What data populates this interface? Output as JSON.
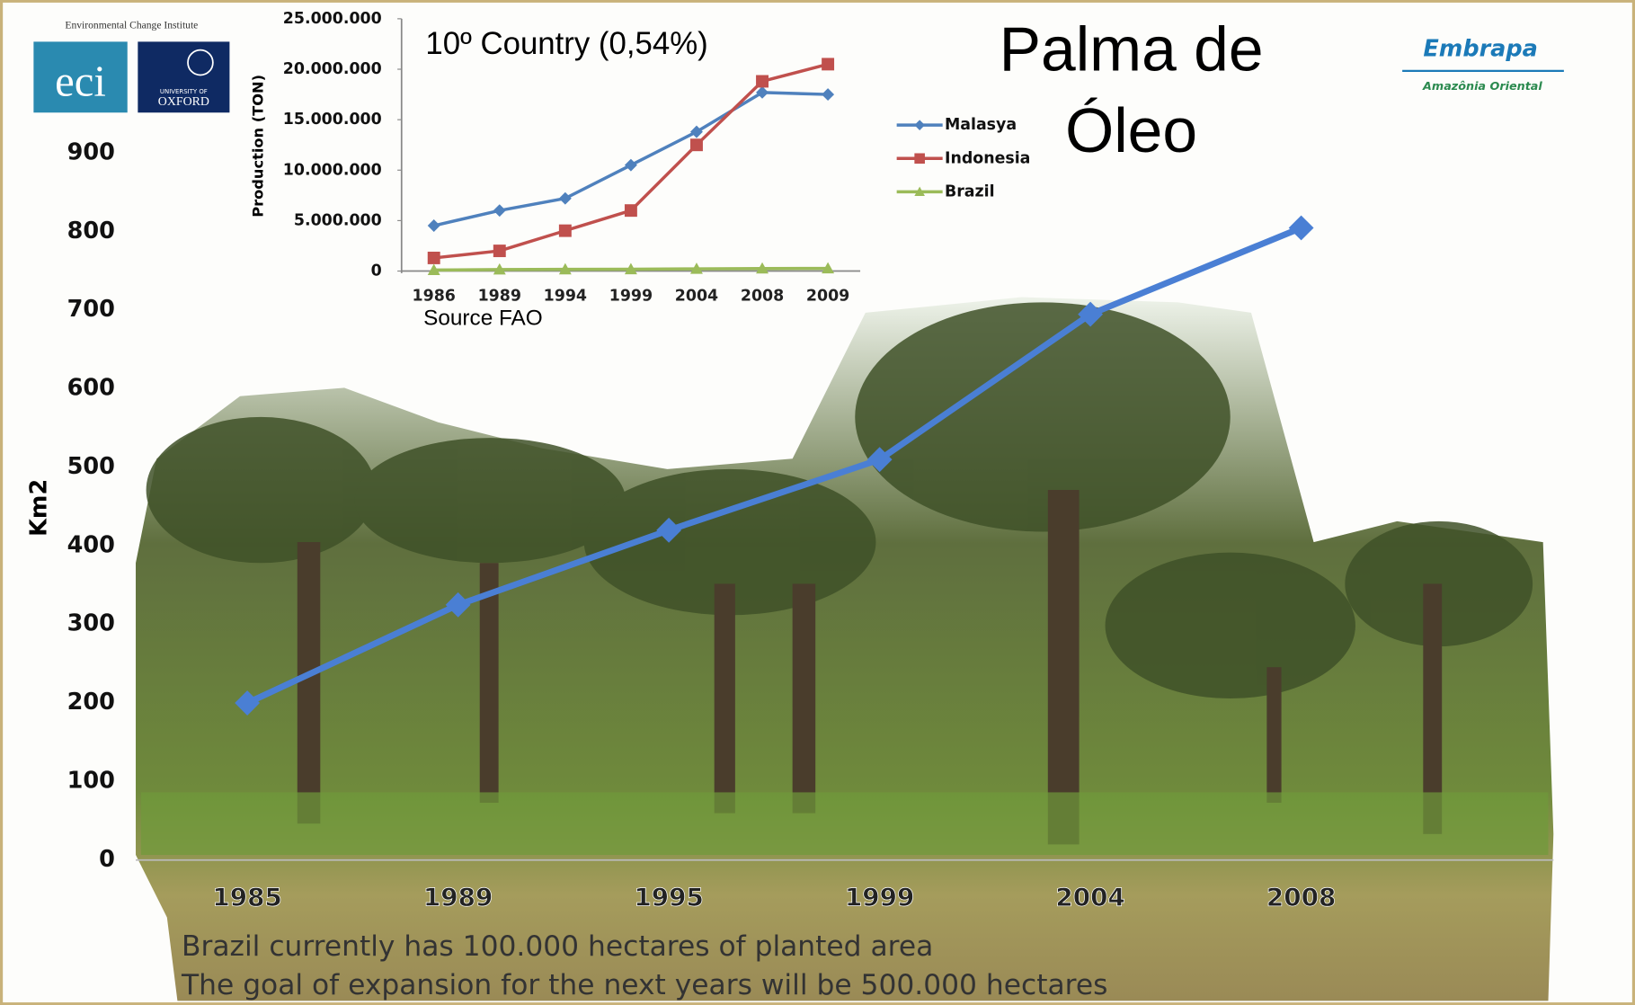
{
  "slide": {
    "title": [
      "Palma de",
      "Óleo"
    ],
    "logo_institute": "Environmental Change Institute",
    "logo_eci": "eci",
    "logo_university": "UNIVERSITY OF",
    "logo_oxford": "OXFORD",
    "logo_embrapa": "Embrapa",
    "logo_embrapa_sub": "Amazônia Oriental",
    "footer": [
      "Brazil currently has 100.000  hectares of planted area",
      "The goal of expansion for the next years will be 500.000 hectares"
    ]
  },
  "chart_data": [
    {
      "type": "line",
      "y_label": "Km2",
      "categories": [
        "1985",
        "1989",
        "1995",
        "1999",
        "2004",
        "2008"
      ],
      "values": [
        200,
        325,
        420,
        510,
        695,
        805
      ],
      "color": "#4a7fd4",
      "ylim": [
        0,
        900
      ],
      "yticks": [
        0,
        100,
        200,
        300,
        400,
        500,
        600,
        700,
        800,
        900
      ]
    },
    {
      "type": "line",
      "title": "10º Country (0,54%)",
      "y_label": "Production (TON)",
      "annotation": "Source FAO",
      "categories": [
        "1986",
        "1989",
        "1994",
        "1999",
        "2004",
        "2008",
        "2009"
      ],
      "series": [
        {
          "name": "Malasya",
          "color": "#4f81bd",
          "marker": "diamond",
          "values": [
            4500000,
            6000000,
            7200000,
            10500000,
            13800000,
            17700000,
            17500000
          ]
        },
        {
          "name": "Indonesia",
          "color": "#c0504d",
          "marker": "square",
          "values": [
            1300000,
            2000000,
            4000000,
            6000000,
            12500000,
            18800000,
            20500000
          ]
        },
        {
          "name": "Brazil",
          "color": "#9bbb59",
          "marker": "triangle",
          "values": [
            100000,
            150000,
            170000,
            180000,
            220000,
            250000,
            260000
          ]
        }
      ],
      "ylim": [
        0,
        25000000
      ],
      "yticks": [
        0,
        {
          "value": 5000000,
          "label": "5.000.000"
        },
        {
          "value": 10000000,
          "label": "10.000.000"
        },
        {
          "value": 15000000,
          "label": "15.000.000"
        },
        {
          "value": 20000000,
          "label": "20.000.000"
        },
        {
          "value": 25000000,
          "label": "25.000.000"
        }
      ]
    }
  ]
}
